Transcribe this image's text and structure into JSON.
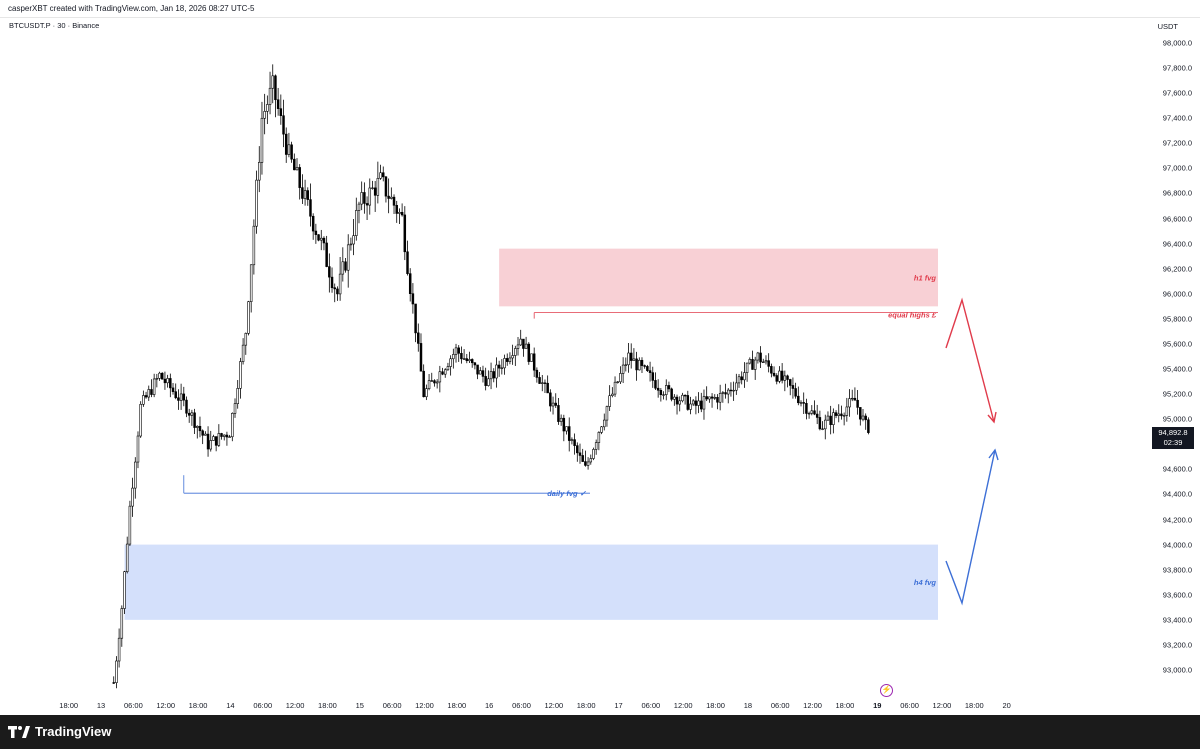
{
  "header": {
    "caption": "casperXBT created with TradingView.com, Jan 18, 2026 08:27 UTC-5"
  },
  "chart": {
    "symbol": "BTCUSDT.P · 30 · Binance",
    "currency": "USDT",
    "last_price": "94,892.8",
    "countdown": "02:39",
    "price_ticks": [
      "98,000.0",
      "97,800.0",
      "97,600.0",
      "97,400.0",
      "97,200.0",
      "97,000.0",
      "96,800.0",
      "96,600.0",
      "96,400.0",
      "96,200.0",
      "96,000.0",
      "95,800.0",
      "95,600.0",
      "95,400.0",
      "95,200.0",
      "95,000.0",
      "94,600.0",
      "94,400.0",
      "94,200.0",
      "94,000.0",
      "93,800.0",
      "93,600.0",
      "93,400.0",
      "93,200.0",
      "93,000.0"
    ],
    "time_ticks": [
      {
        "label": "18:00",
        "bold": false
      },
      {
        "label": "13",
        "bold": false
      },
      {
        "label": "06:00",
        "bold": false
      },
      {
        "label": "12:00",
        "bold": false
      },
      {
        "label": "18:00",
        "bold": false
      },
      {
        "label": "14",
        "bold": false
      },
      {
        "label": "06:00",
        "bold": false
      },
      {
        "label": "12:00",
        "bold": false
      },
      {
        "label": "18:00",
        "bold": false
      },
      {
        "label": "15",
        "bold": false
      },
      {
        "label": "06:00",
        "bold": false
      },
      {
        "label": "12:00",
        "bold": false
      },
      {
        "label": "18:00",
        "bold": false
      },
      {
        "label": "16",
        "bold": false
      },
      {
        "label": "06:00",
        "bold": false
      },
      {
        "label": "12:00",
        "bold": false
      },
      {
        "label": "18:00",
        "bold": false
      },
      {
        "label": "17",
        "bold": false
      },
      {
        "label": "06:00",
        "bold": false
      },
      {
        "label": "12:00",
        "bold": false
      },
      {
        "label": "18:00",
        "bold": false
      },
      {
        "label": "18",
        "bold": false
      },
      {
        "label": "06:00",
        "bold": false
      },
      {
        "label": "12:00",
        "bold": false
      },
      {
        "label": "18:00",
        "bold": false
      },
      {
        "label": "19",
        "bold": true
      },
      {
        "label": "06:00",
        "bold": false
      },
      {
        "label": "12:00",
        "bold": false
      },
      {
        "label": "18:00",
        "bold": false
      },
      {
        "label": "20",
        "bold": false
      }
    ],
    "colors": {
      "up_candle": "#ffffff",
      "down_candle": "#000000",
      "h1_fvg_fill": "#f8d0d5",
      "h4_fvg_fill": "#d4e0fb",
      "bearish": "#e03b4b",
      "bullish": "#3d6fd6"
    }
  },
  "chart_data": {
    "type": "candlestick",
    "ylim": [
      92900,
      98100
    ],
    "price_path": [
      {
        "time": "Jan 12 12:30",
        "price": 92900
      },
      {
        "time": "Jan 12 14:00",
        "price": 93500
      },
      {
        "time": "Jan 12 15:30",
        "price": 94300
      },
      {
        "time": "Jan 12 17:30",
        "price": 95100
      },
      {
        "time": "Jan 12 21:00",
        "price": 95350
      },
      {
        "time": "Jan 13 02:00",
        "price": 95100
      },
      {
        "time": "Jan 13 06:00",
        "price": 94800
      },
      {
        "time": "Jan 13 10:00",
        "price": 94900
      },
      {
        "time": "Jan 13 13:00",
        "price": 95700
      },
      {
        "time": "Jan 13 16:00",
        "price": 97400
      },
      {
        "time": "Jan 13 18:00",
        "price": 97650
      },
      {
        "time": "Jan 13 21:00",
        "price": 97100
      },
      {
        "time": "Jan 14 03:00",
        "price": 96400
      },
      {
        "time": "Jan 14 06:00",
        "price": 96000
      },
      {
        "time": "Jan 14 10:00",
        "price": 96700
      },
      {
        "time": "Jan 14 14:00",
        "price": 96900
      },
      {
        "time": "Jan 14 18:00",
        "price": 96600
      },
      {
        "time": "Jan 14 22:00",
        "price": 95200
      },
      {
        "time": "Jan 15 04:00",
        "price": 95550
      },
      {
        "time": "Jan 15 10:00",
        "price": 95300
      },
      {
        "time": "Jan 15 16:00",
        "price": 95650
      },
      {
        "time": "Jan 15 22:00",
        "price": 95100
      },
      {
        "time": "Jan 16 04:00",
        "price": 94600
      },
      {
        "time": "Jan 16 08:00",
        "price": 95100
      },
      {
        "time": "Jan 16 12:00",
        "price": 95500
      },
      {
        "time": "Jan 16 18:00",
        "price": 95250
      },
      {
        "time": "Jan 17 00:00",
        "price": 95100
      },
      {
        "time": "Jan 17 06:00",
        "price": 95200
      },
      {
        "time": "Jan 17 12:00",
        "price": 95500
      },
      {
        "time": "Jan 17 18:00",
        "price": 95250
      },
      {
        "time": "Jan 18 00:00",
        "price": 94950
      },
      {
        "time": "Jan 18 06:00",
        "price": 95150
      },
      {
        "time": "Jan 18 08:30",
        "price": 94892.8
      }
    ],
    "zones": [
      {
        "label": "h1 fvg",
        "from": 95900,
        "to": 96360
      },
      {
        "label": "h4 fvg",
        "from": 93400,
        "to": 94000
      }
    ],
    "levels": [
      {
        "label": "equal highs £",
        "price": 95850
      },
      {
        "label": "daily fvg ✓",
        "price": 94410
      }
    ]
  }
}
